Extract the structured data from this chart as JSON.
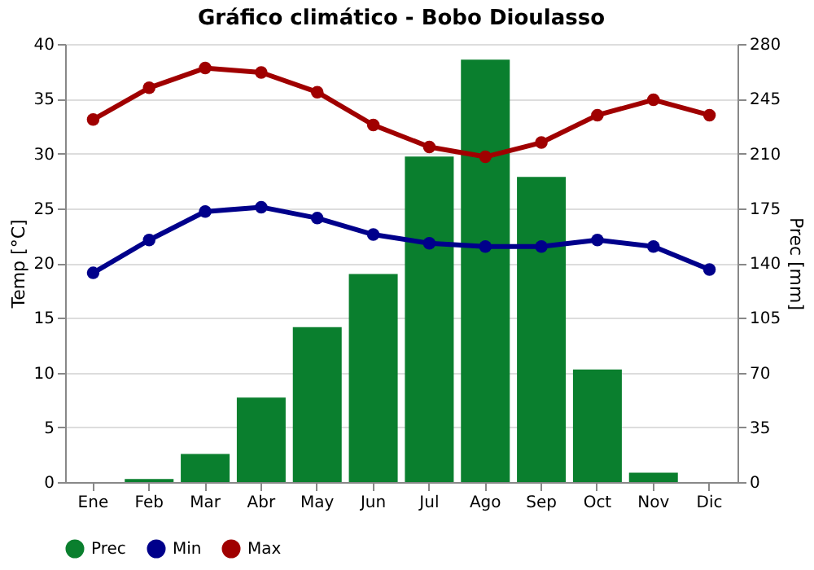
{
  "chart_data": {
    "type": "bar",
    "title": "Gráfico climático - Bobo Dioulasso",
    "ylabel": "Temp [°C]",
    "y2label": "Prec [mm]",
    "categories": [
      "Ene",
      "Feb",
      "Mar",
      "Abr",
      "May",
      "Jun",
      "Jul",
      "Ago",
      "Sep",
      "Oct",
      "Nov",
      "Dic"
    ],
    "series": [
      {
        "name": "Prec",
        "axis": "y2",
        "color": "#0a7f2e",
        "values": [
          0,
          2,
          18,
          54,
          99,
          133,
          208,
          270,
          195,
          72,
          6,
          0
        ]
      },
      {
        "name": "Min",
        "type": "line",
        "color": "#00008b",
        "values": [
          19.1,
          22.1,
          24.7,
          25.1,
          24.1,
          22.6,
          21.8,
          21.5,
          21.5,
          22.1,
          21.5,
          19.4
        ]
      },
      {
        "name": "Max",
        "type": "line",
        "color": "#a00000",
        "values": [
          33.1,
          36.0,
          37.8,
          37.4,
          35.6,
          32.6,
          30.6,
          29.7,
          31.0,
          33.5,
          34.9,
          33.5
        ]
      }
    ],
    "ylim": [
      0,
      40
    ],
    "yticks": [
      0,
      5,
      10,
      15,
      20,
      25,
      30,
      35,
      40
    ],
    "y2lim": [
      0,
      280
    ],
    "y2ticks": [
      0,
      35,
      70,
      105,
      140,
      175,
      210,
      245,
      280
    ],
    "grid": "y",
    "legend": "bottom",
    "marker": "circle",
    "line_style": "solid"
  }
}
